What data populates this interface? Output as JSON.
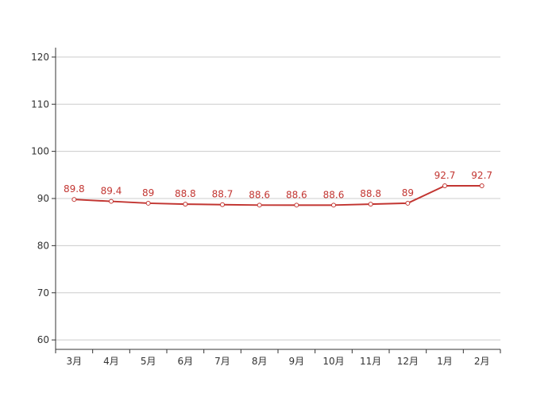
{
  "chart_data": {
    "type": "line",
    "title": "",
    "xlabel": "",
    "ylabel": "",
    "categories": [
      "3月",
      "4月",
      "5月",
      "6月",
      "7月",
      "8月",
      "9月",
      "10月",
      "11月",
      "12月",
      "1月",
      "2月"
    ],
    "series": [
      {
        "values": [
          89.8,
          89.4,
          89,
          88.8,
          88.7,
          88.6,
          88.6,
          88.6,
          88.8,
          89,
          92.7,
          92.7
        ],
        "color": "#c23531",
        "data_labels": [
          "89.8",
          "89.4",
          "89",
          "88.8",
          "88.7",
          "88.6",
          "88.6",
          "88.6",
          "88.8",
          "89",
          "92.7",
          "92.7"
        ]
      }
    ],
    "ylim": [
      58,
      122
    ],
    "y_ticks": [
      60,
      70,
      80,
      90,
      100,
      110,
      120
    ],
    "y_tick_labels": [
      "60",
      "70",
      "80",
      "90",
      "100",
      "110",
      "120"
    ],
    "grid": true,
    "legend": "none"
  }
}
